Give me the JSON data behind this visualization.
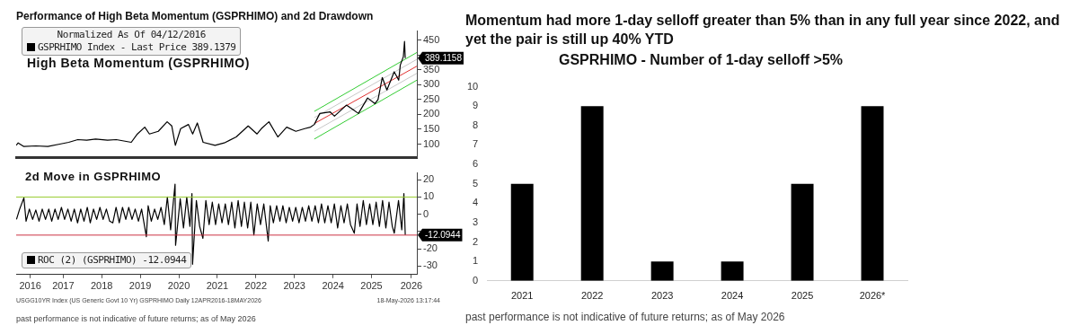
{
  "chart_data": [
    {
      "type": "line",
      "title": "Performance of High Beta Momentum (GSPRHIMO) and 2d Drawdown",
      "subtitle": "High Beta Momentum (GSPRHIMO)",
      "legend_title": "Normalized As Of 04/12/2016",
      "legend": "top left",
      "grid": false,
      "marker": "none",
      "tick_labels": "y",
      "xlim": [
        "2016-04-12",
        "2026-09-05"
      ],
      "ylim": [
        55,
        480
      ],
      "yticks": [
        100,
        150,
        200,
        250,
        300,
        350,
        {
          "value": 400,
          "label": null
        },
        450
      ],
      "series": [
        {
          "name": "GSPRHIMO Index - Last Price 389.1379",
          "color": "#000000",
          "x": [
            "2016-04-12",
            "2016-05-01",
            "2016-06-24",
            "2016-10-15",
            "2017-02-06",
            "2017-05-30",
            "2017-08-23",
            "2017-11-17",
            "2018-02-10",
            "2018-05-05",
            "2018-08-26",
            "2018-11-17",
            "2019-04-08",
            "2019-06-05",
            "2019-08-14",
            "2019-09-27",
            "2019-12-20",
            "2020-03-13",
            "2020-04-26",
            "2020-05-30",
            "2020-07-19",
            "2020-10-01",
            "2020-11-10",
            "2020-12-24",
            "2021-02-17",
            "2021-06-10",
            "2021-09-05",
            "2021-12-28",
            "2022-04-20",
            "2022-07-13",
            "2022-08-23",
            "2022-11-03",
            "2023-01-26",
            "2023-04-20",
            "2023-07-16",
            "2023-10-08",
            "2023-12-02",
            "2024-01-07",
            "2024-02-28",
            "2024-06-06",
            "2024-07-16",
            "2024-11-06",
            "2025-01-04",
            "2025-02-28",
            "2025-05-26",
            "2025-08-04",
            "2025-09-02",
            "2025-10-12",
            "2025-11-25",
            "2026-02-02",
            "2026-03-17",
            "2026-04-01",
            "2026-04-30",
            "2026-05-11",
            "2026-05-18"
          ],
          "values": [
            96,
            104,
            92,
            94,
            92,
            100,
            106,
            115,
            113,
            117,
            113,
            115,
            106,
            134,
            157,
            134,
            143,
            175,
            161,
            96,
            152,
            166,
            134,
            171,
            106,
            96,
            104,
            124,
            161,
            134,
            152,
            175,
            124,
            157,
            143,
            152,
            157,
            166,
            203,
            208,
            194,
            231,
            217,
            203,
            255,
            236,
            250,
            324,
            282,
            343,
            315,
            366,
            394,
            445,
            389
          ]
        },
        {
          "color": "#33cc33",
          "x": [
            "2024-01-07",
            "2026-09-05"
          ],
          "values": [
            210,
            408
          ]
        },
        {
          "color": "#c8c8c8",
          "x": [
            "2024-01-07",
            "2026-09-05"
          ],
          "values": [
            189,
            385
          ]
        },
        {
          "color": "#e03030",
          "x": [
            "2024-01-07",
            "2026-09-05"
          ],
          "values": [
            169,
            362
          ]
        },
        {
          "color": "#c8c8c8",
          "x": [
            "2024-01-07",
            "2026-09-05"
          ],
          "values": [
            143,
            338
          ]
        },
        {
          "color": "#33cc33",
          "x": [
            "2024-01-07",
            "2026-09-05"
          ],
          "values": [
            117,
            315
          ]
        }
      ],
      "annotations": [
        {
          "text": "389.1158",
          "x": "2026-05-18",
          "y": 389.1158
        }
      ]
    },
    {
      "type": "line",
      "title": "2d Move in GSPRHIMO",
      "legend": "bottom left",
      "grid": false,
      "marker": "none",
      "xlim": [
        "2016-04-12",
        "2026-09-05"
      ],
      "xticks": [
        {
          "value": "2016-08-24",
          "label": "2016"
        },
        {
          "value": "2017-07-02",
          "label": "2017"
        },
        {
          "value": "2018-07-02",
          "label": "2018"
        },
        {
          "value": "2019-07-02",
          "label": "2019"
        },
        {
          "value": "2020-07-02",
          "label": "2020"
        },
        {
          "value": "2021-07-02",
          "label": "2021"
        },
        {
          "value": "2022-07-02",
          "label": "2022"
        },
        {
          "value": "2023-07-02",
          "label": "2023"
        },
        {
          "value": "2024-07-02",
          "label": "2024"
        },
        {
          "value": "2025-07-02",
          "label": "2025"
        },
        {
          "value": "2026-07-15",
          "label": "2026"
        }
      ],
      "ylim": [
        -35,
        24
      ],
      "yticks": [
        20,
        10,
        0,
        {
          "value": -10,
          "label": null
        },
        -20,
        -30
      ],
      "series": [
        {
          "name": "ROC (2) (GSPRHIMO) -12.0944",
          "color": "#000000",
          "x": [
            "2016-04-15",
            "2016-05-15",
            "2016-06-24",
            "2016-07-15",
            "2016-08-15",
            "2016-09-15",
            "2016-10-15",
            "2016-11-15",
            "2016-12-15",
            "2017-01-15",
            "2017-02-15",
            "2017-03-15",
            "2017-04-15",
            "2017-05-15",
            "2017-06-15",
            "2017-07-15",
            "2017-08-15",
            "2017-09-15",
            "2017-10-15",
            "2017-11-15",
            "2017-12-15",
            "2018-01-15",
            "2018-02-15",
            "2018-03-15",
            "2018-04-15",
            "2018-05-15",
            "2018-06-15",
            "2018-07-15",
            "2018-08-15",
            "2018-09-15",
            "2018-10-15",
            "2018-11-15",
            "2018-12-15",
            "2019-01-15",
            "2019-02-15",
            "2019-03-15",
            "2019-04-15",
            "2019-05-15",
            "2019-06-15",
            "2019-07-15",
            "2019-08-29",
            "2019-09-15",
            "2019-10-15",
            "2019-11-15",
            "2019-12-15",
            "2020-01-15",
            "2020-02-15",
            "2020-03-15",
            "2020-04-15",
            "2020-05-27",
            "2020-06-01",
            "2020-07-15",
            "2020-08-15",
            "2020-09-15",
            "2020-10-15",
            "2020-11-03",
            "2020-11-09",
            "2020-12-15",
            "2021-01-15",
            "2021-02-15",
            "2021-03-15",
            "2021-04-15",
            "2021-05-15",
            "2021-06-15",
            "2021-07-15",
            "2021-08-15",
            "2021-09-15",
            "2021-10-15",
            "2021-11-15",
            "2021-12-15",
            "2022-01-15",
            "2022-02-15",
            "2022-03-15",
            "2022-04-15",
            "2022-05-15",
            "2022-06-13",
            "2022-07-15",
            "2022-08-15",
            "2022-09-15",
            "2022-10-27",
            "2022-11-15",
            "2022-12-15",
            "2023-01-15",
            "2023-02-15",
            "2023-03-15",
            "2023-04-15",
            "2023-05-15",
            "2023-06-15",
            "2023-07-15",
            "2023-08-15",
            "2023-09-15",
            "2023-10-15",
            "2023-11-15",
            "2023-12-15",
            "2024-01-15",
            "2024-02-15",
            "2024-03-15",
            "2024-04-15",
            "2024-05-15",
            "2024-06-15",
            "2024-07-15",
            "2024-08-15",
            "2024-09-15",
            "2024-10-15",
            "2024-11-15",
            "2024-12-15",
            "2025-01-20",
            "2025-02-15",
            "2025-03-15",
            "2025-04-15",
            "2025-05-15",
            "2025-06-15",
            "2025-07-15",
            "2025-08-15",
            "2025-09-15",
            "2025-10-15",
            "2025-11-15",
            "2025-12-15",
            "2026-01-15",
            "2026-02-03",
            "2026-03-15",
            "2026-04-15",
            "2026-05-05",
            "2026-05-18"
          ],
          "values": [
            -3,
            3,
            9.5,
            -4,
            3,
            -3,
            2.5,
            -4,
            3,
            -3,
            3,
            -4,
            3,
            -3,
            4,
            -3,
            3,
            -4,
            3,
            -5,
            3,
            -4,
            4,
            -5,
            3,
            -3,
            4,
            -3,
            3,
            -4,
            -5,
            4,
            -5,
            4,
            -3,
            4,
            -3,
            3,
            -4,
            3,
            -13,
            5,
            -4,
            3,
            -3,
            4,
            -6,
            10,
            -9,
            17.5,
            -18,
            9,
            -8,
            10,
            -7,
            12,
            -29,
            8,
            -7,
            -14,
            8,
            -6,
            7,
            -6,
            6,
            -5,
            6,
            -6,
            7,
            -8,
            8,
            -7,
            7,
            -8,
            7,
            -12,
            6,
            -6,
            6,
            -15.5,
            5,
            -5,
            5,
            -4,
            5,
            -5,
            4,
            -4,
            4,
            -5,
            4,
            -4,
            5,
            -4,
            5,
            -5,
            6,
            -5,
            5,
            -5,
            6,
            -8,
            5,
            -5,
            6,
            -6,
            -11,
            6,
            -7,
            8,
            -6,
            6,
            -6,
            7,
            -7,
            8,
            -8,
            7,
            -7,
            -11,
            8,
            -9,
            12,
            -12.0944
          ]
        }
      ],
      "ref_lines": [
        {
          "axis": "y",
          "value": 10,
          "color": "#99cc33"
        },
        {
          "axis": "y",
          "value": -12.0944,
          "label": "-12.0944",
          "color": "#cc3344"
        }
      ],
      "annotations": [
        "USGG10YR Index (US Generic Govt 10 Yr) GSPRHIMO Daily 12APR2016-18MAY2026",
        "18-May-2026 13:17:44",
        "past performance is not indicative of future returns; as of May 2026"
      ]
    },
    {
      "type": "bar",
      "title": "Momentum had more 1-day selloff greater than 5% than in any full year since 2022, and yet the pair is still up 40% YTD",
      "subtitle": "GSPRHIMO - Number of 1-day selloff >5%",
      "categories": [
        "2021",
        "2022",
        "2023",
        "2024",
        "2025",
        "2026*"
      ],
      "values": [
        5,
        9,
        1,
        1,
        5,
        9
      ],
      "color": "#000000",
      "ylim": [
        0,
        10
      ],
      "yticks": [
        0,
        1,
        2,
        3,
        4,
        5,
        6,
        7,
        8,
        9,
        10
      ],
      "grid": false,
      "annotations": [
        "past performance is not indicative of future returns; as of May 2026"
      ]
    }
  ]
}
